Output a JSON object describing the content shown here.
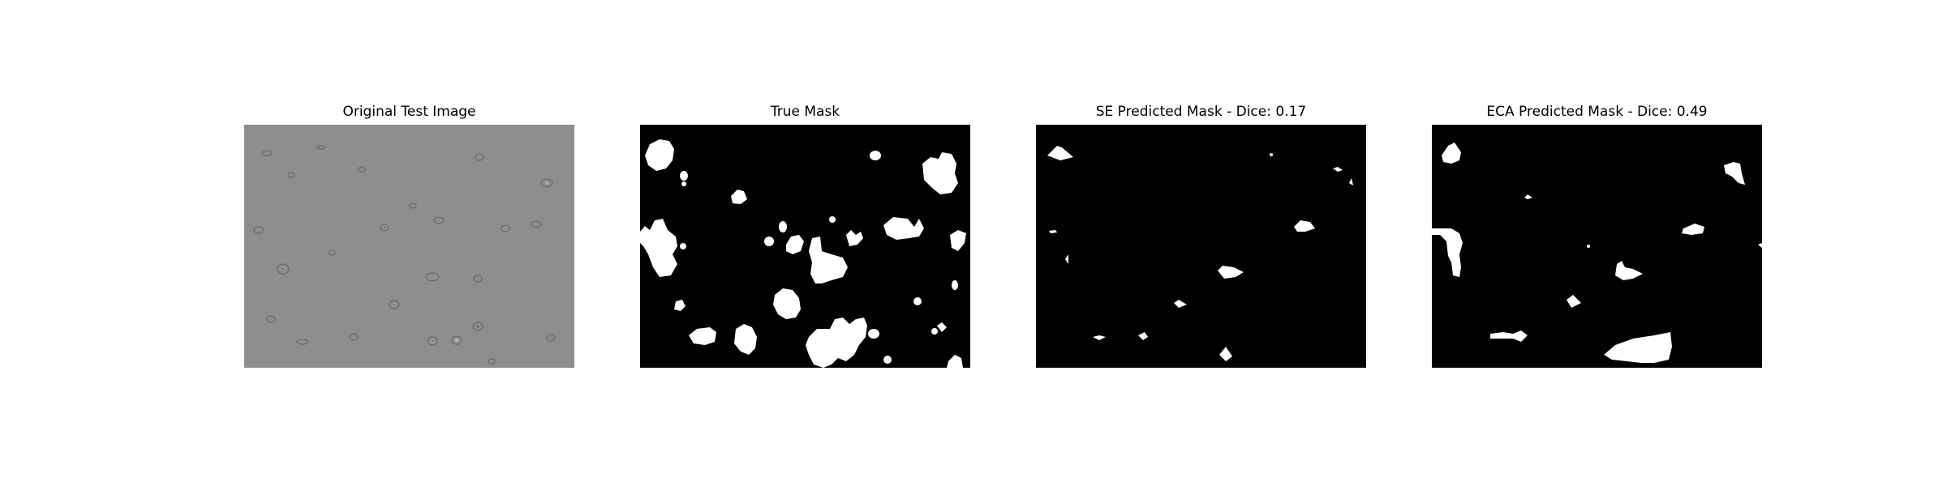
{
  "figure": {
    "panels": [
      {
        "title": "Original Test Image"
      },
      {
        "title": "True Mask"
      },
      {
        "title": "SE Predicted Mask - Dice: 0.17"
      },
      {
        "title": "ECA Predicted Mask - Dice: 0.49"
      }
    ]
  },
  "colors": {
    "background": "#ffffff",
    "mask_background": "#000000",
    "mask_foreground": "#ffffff",
    "micrograph_gray": "#8e8e8e"
  }
}
